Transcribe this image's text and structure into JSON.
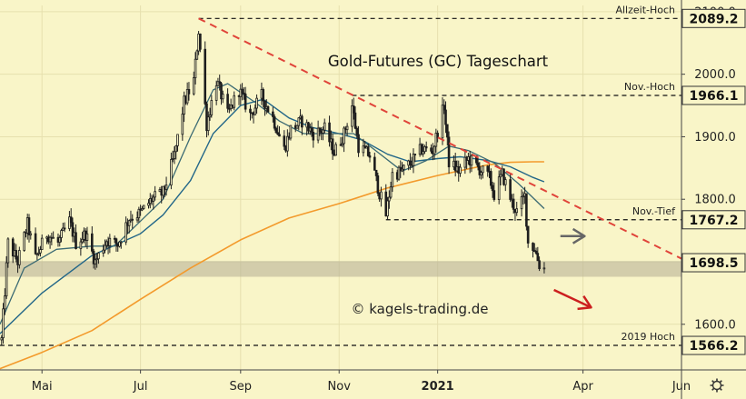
{
  "chart_data": {
    "type": "candlestick",
    "title": "Gold-Futures (GC) Tageschart",
    "watermark": "© kagels-trading.de",
    "x_ticks": [
      {
        "date": "2020-05-01",
        "label": "Mai",
        "bold": false
      },
      {
        "date": "2020-07-01",
        "label": "Jul",
        "bold": false
      },
      {
        "date": "2020-09-01",
        "label": "Sep",
        "bold": false
      },
      {
        "date": "2020-11-01",
        "label": "Nov",
        "bold": false
      },
      {
        "date": "2021-01-01",
        "label": "2021",
        "bold": true
      },
      {
        "date": "2021-04-01",
        "label": "Apr",
        "bold": false
      },
      {
        "date": "2021-06-01",
        "label": "Jun",
        "bold": false
      }
    ],
    "y_ticks": [
      1600,
      1700,
      1800,
      1900,
      2000,
      2100
    ],
    "y_tick_labels": [
      "1600.0",
      "1700.0",
      "1800.0",
      "1900.0",
      "2000.0",
      "2100.0"
    ],
    "ylim": [
      1527,
      2110
    ],
    "xlim": [
      "2020-04-05",
      "2021-06-01"
    ],
    "price_levels": [
      {
        "label": "Allzeit-Hoch",
        "value": "2089.2",
        "y": 2089.2,
        "from": "2020-08-06"
      },
      {
        "label": "Nov.-Hoch",
        "value": "1966.1",
        "y": 1966.1,
        "from": "2020-11-09"
      },
      {
        "label": "Nov.-Tief",
        "value": "1767.2",
        "y": 1767.2,
        "from": "2020-11-30"
      },
      {
        "label": "2019 Hoch",
        "value": "1566.2",
        "y": 1566.2,
        "from": "2020-04-05"
      }
    ],
    "current_price": {
      "value": "1698.5",
      "y": 1698.5
    },
    "support_zone": [
      1676,
      1701
    ],
    "trendline": [
      {
        "date": "2020-08-06",
        "y": 2089.2
      },
      {
        "date": "2021-06-01",
        "y": 1705
      }
    ],
    "arrows": [
      {
        "color": "#666666",
        "from": {
          "date": "2021-03-18",
          "y": 1741
        },
        "to": {
          "date": "2021-04-02",
          "y": 1741
        }
      },
      {
        "color": "#cc1f1f",
        "from": {
          "date": "2021-03-14",
          "y": 1655
        },
        "to": {
          "date": "2021-04-06",
          "y": 1627
        }
      }
    ],
    "colors": {
      "background": "#f9f5c8",
      "up": "#222222",
      "down": "#222222",
      "sma200": "#f39a2c",
      "sma50": "#226688",
      "sma20": "#3b6a73",
      "trendline": "#e0443a"
    },
    "ohlc_path": [
      [
        "2020-04-06",
        1575
      ],
      [
        "2020-04-10",
        1730
      ],
      [
        "2020-04-16",
        1700
      ],
      [
        "2020-04-22",
        1760
      ],
      [
        "2020-04-27",
        1705
      ],
      [
        "2020-05-04",
        1745
      ],
      [
        "2020-05-11",
        1730
      ],
      [
        "2020-05-18",
        1765
      ],
      [
        "2020-05-22",
        1730
      ],
      [
        "2020-05-28",
        1745
      ],
      [
        "2020-06-03",
        1700
      ],
      [
        "2020-06-10",
        1735
      ],
      [
        "2020-06-17",
        1728
      ],
      [
        "2020-06-24",
        1770
      ],
      [
        "2020-07-01",
        1778
      ],
      [
        "2020-07-08",
        1800
      ],
      [
        "2020-07-15",
        1810
      ],
      [
        "2020-07-22",
        1870
      ],
      [
        "2020-07-28",
        1955
      ],
      [
        "2020-08-03",
        1990
      ],
      [
        "2020-08-06",
        2070
      ],
      [
        "2020-08-11",
        1920
      ],
      [
        "2020-08-17",
        1990
      ],
      [
        "2020-08-24",
        1935
      ],
      [
        "2020-08-31",
        1975
      ],
      [
        "2020-09-07",
        1935
      ],
      [
        "2020-09-14",
        1965
      ],
      [
        "2020-09-21",
        1930
      ],
      [
        "2020-09-28",
        1880
      ],
      [
        "2020-10-02",
        1912
      ],
      [
        "2020-10-09",
        1925
      ],
      [
        "2020-10-16",
        1905
      ],
      [
        "2020-10-23",
        1912
      ],
      [
        "2020-10-29",
        1875
      ],
      [
        "2020-11-04",
        1905
      ],
      [
        "2020-11-09",
        1950
      ],
      [
        "2020-11-13",
        1885
      ],
      [
        "2020-11-20",
        1870
      ],
      [
        "2020-11-26",
        1810
      ],
      [
        "2020-11-30",
        1775
      ],
      [
        "2020-12-04",
        1840
      ],
      [
        "2020-12-10",
        1845
      ],
      [
        "2020-12-16",
        1860
      ],
      [
        "2020-12-22",
        1880
      ],
      [
        "2020-12-29",
        1878
      ],
      [
        "2021-01-05",
        1950
      ],
      [
        "2021-01-08",
        1860
      ],
      [
        "2021-01-14",
        1845
      ],
      [
        "2021-01-20",
        1865
      ],
      [
        "2021-01-27",
        1848
      ],
      [
        "2021-02-02",
        1835
      ],
      [
        "2021-02-05",
        1808
      ],
      [
        "2021-02-10",
        1840
      ],
      [
        "2021-02-16",
        1795
      ],
      [
        "2021-02-19",
        1780
      ],
      [
        "2021-02-24",
        1805
      ],
      [
        "2021-02-26",
        1730
      ],
      [
        "2021-03-02",
        1722
      ],
      [
        "2021-03-05",
        1695
      ],
      [
        "2021-03-08",
        1690
      ]
    ],
    "sma200_path": [
      [
        "2020-04-05",
        1529
      ],
      [
        "2020-05-01",
        1555
      ],
      [
        "2020-06-01",
        1590
      ],
      [
        "2020-07-01",
        1640
      ],
      [
        "2020-08-01",
        1690
      ],
      [
        "2020-09-01",
        1735
      ],
      [
        "2020-10-01",
        1770
      ],
      [
        "2020-11-01",
        1793
      ],
      [
        "2020-12-01",
        1818
      ],
      [
        "2021-01-01",
        1838
      ],
      [
        "2021-02-01",
        1855
      ],
      [
        "2021-02-15",
        1859
      ],
      [
        "2021-03-01",
        1860
      ],
      [
        "2021-03-08",
        1860
      ]
    ],
    "sma50_path": [
      [
        "2020-04-05",
        1585
      ],
      [
        "2020-05-01",
        1650
      ],
      [
        "2020-06-01",
        1710
      ],
      [
        "2020-07-01",
        1745
      ],
      [
        "2020-07-15",
        1775
      ],
      [
        "2020-08-01",
        1830
      ],
      [
        "2020-08-15",
        1905
      ],
      [
        "2020-09-01",
        1950
      ],
      [
        "2020-09-15",
        1960
      ],
      [
        "2020-10-01",
        1930
      ],
      [
        "2020-10-15",
        1915
      ],
      [
        "2020-11-01",
        1905
      ],
      [
        "2020-11-15",
        1895
      ],
      [
        "2020-12-01",
        1872
      ],
      [
        "2020-12-15",
        1860
      ],
      [
        "2021-01-01",
        1865
      ],
      [
        "2021-01-15",
        1868
      ],
      [
        "2021-02-01",
        1862
      ],
      [
        "2021-02-15",
        1852
      ],
      [
        "2021-03-01",
        1835
      ],
      [
        "2021-03-08",
        1828
      ]
    ],
    "sma20_path": [
      [
        "2020-04-05",
        1600
      ],
      [
        "2020-04-20",
        1690
      ],
      [
        "2020-05-10",
        1720
      ],
      [
        "2020-06-01",
        1725
      ],
      [
        "2020-06-15",
        1725
      ],
      [
        "2020-07-01",
        1765
      ],
      [
        "2020-07-15",
        1800
      ],
      [
        "2020-08-01",
        1900
      ],
      [
        "2020-08-15",
        1975
      ],
      [
        "2020-08-24",
        1985
      ],
      [
        "2020-09-10",
        1955
      ],
      [
        "2020-09-25",
        1925
      ],
      [
        "2020-10-10",
        1905
      ],
      [
        "2020-10-25",
        1905
      ],
      [
        "2020-11-10",
        1905
      ],
      [
        "2020-11-25",
        1875
      ],
      [
        "2020-12-10",
        1845
      ],
      [
        "2020-12-25",
        1862
      ],
      [
        "2021-01-08",
        1885
      ],
      [
        "2021-01-20",
        1878
      ],
      [
        "2021-02-05",
        1858
      ],
      [
        "2021-02-20",
        1825
      ],
      [
        "2021-03-08",
        1785
      ]
    ]
  }
}
